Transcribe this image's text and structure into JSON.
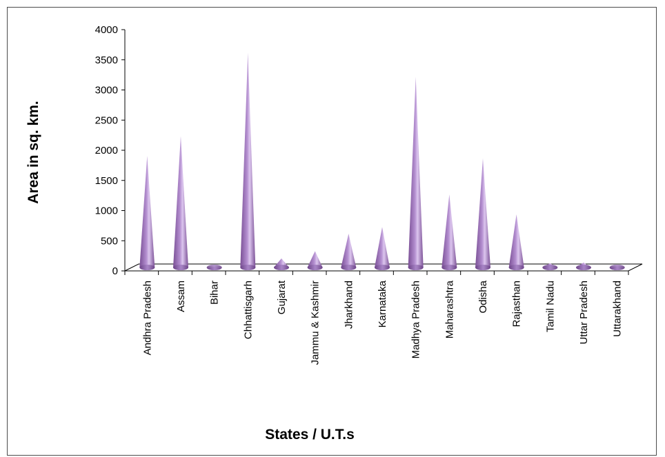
{
  "chart_data": {
    "type": "bar",
    "style": "3d-cone",
    "categories": [
      "Andhra Pradesh",
      "Assam",
      "Bihar",
      "Chhattisgarh",
      "Gujarat",
      "Jammu & Kashmir",
      "Jharkhand",
      "Karnataka",
      "Madhya Pradesh",
      "Maharashtra",
      "Odisha",
      "Rajasthan",
      "Tamil Nadu",
      "Uttar Pradesh",
      "Uttarakhand"
    ],
    "values": [
      1850,
      2180,
      10,
      3560,
      150,
      270,
      560,
      670,
      3160,
      1210,
      1810,
      880,
      70,
      80,
      20
    ],
    "xlabel": "States / U.T.s",
    "ylabel": "Area in sq. km.",
    "ylim": [
      0,
      4000
    ],
    "yticks": [
      0,
      500,
      1000,
      1500,
      2000,
      2500,
      3000,
      3500,
      4000
    ],
    "grid": false,
    "legend": "none",
    "colors": {
      "cone_dark": "#7a4f95",
      "cone_mid": "#b48fd0",
      "cone_light": "#dcc6ee",
      "axis": "#000000"
    }
  }
}
